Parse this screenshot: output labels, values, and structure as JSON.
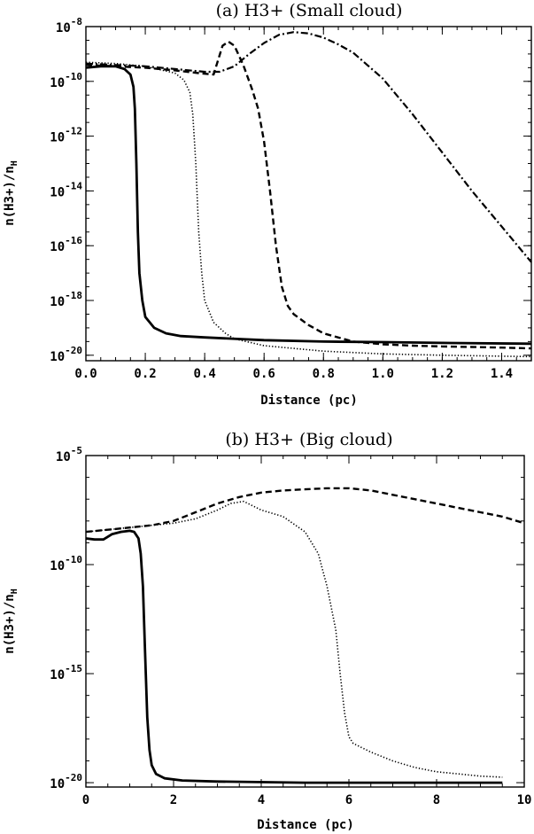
{
  "chart_data": [
    {
      "panel_id": "a",
      "type": "line",
      "title": "(a) H3+ (Small cloud)",
      "xlabel": "Distance (pc)",
      "ylabel": "n(H3+)/n",
      "ylabel_subscript": "H",
      "xlim": [
        0.0,
        1.5
      ],
      "ylim_log10": [
        -20.2,
        -8.0
      ],
      "x_tick_labels": [
        "0.0",
        "0.2",
        "0.4",
        "0.6",
        "0.8",
        "1.0",
        "1.2",
        "1.4"
      ],
      "y_tick_base": "10",
      "y_tick_exponents": [
        "-8",
        "-10",
        "-12",
        "-14",
        "-16",
        "-18",
        "-20"
      ],
      "grid": false,
      "series": [
        {
          "style": "solid",
          "x": [
            0.0,
            0.05,
            0.1,
            0.13,
            0.15,
            0.16,
            0.165,
            0.17,
            0.175,
            0.18,
            0.19,
            0.2,
            0.23,
            0.27,
            0.32,
            0.4,
            0.6,
            0.8,
            1.0,
            1.2,
            1.5
          ],
          "log10_y": [
            -9.5,
            -9.45,
            -9.45,
            -9.55,
            -9.75,
            -10.2,
            -11.0,
            -13.0,
            -15.5,
            -17.0,
            -18.0,
            -18.6,
            -19.0,
            -19.2,
            -19.3,
            -19.35,
            -19.45,
            -19.5,
            -19.52,
            -19.55,
            -19.58
          ]
        },
        {
          "style": "dotted",
          "x": [
            0.0,
            0.1,
            0.2,
            0.3,
            0.33,
            0.35,
            0.36,
            0.37,
            0.38,
            0.39,
            0.4,
            0.43,
            0.47,
            0.5,
            0.6,
            0.8,
            1.0,
            1.2,
            1.5
          ],
          "log10_y": [
            -9.3,
            -9.35,
            -9.45,
            -9.7,
            -9.95,
            -10.4,
            -11.2,
            -13.0,
            -15.5,
            -17.0,
            -18.0,
            -18.8,
            -19.2,
            -19.4,
            -19.65,
            -19.85,
            -19.95,
            -20.0,
            -20.05
          ]
        },
        {
          "style": "dashed",
          "x": [
            0.0,
            0.1,
            0.2,
            0.3,
            0.38,
            0.43,
            0.46,
            0.48,
            0.5,
            0.53,
            0.56,
            0.58,
            0.6,
            0.62,
            0.64,
            0.66,
            0.68,
            0.7,
            0.75,
            0.8,
            0.9,
            1.0,
            1.1,
            1.2,
            1.3,
            1.4,
            1.5
          ],
          "log10_y": [
            -9.4,
            -9.45,
            -9.5,
            -9.6,
            -9.7,
            -9.75,
            -8.7,
            -8.55,
            -8.7,
            -9.4,
            -10.3,
            -11.0,
            -12.2,
            -14.0,
            -16.0,
            -17.5,
            -18.2,
            -18.5,
            -18.9,
            -19.2,
            -19.5,
            -19.6,
            -19.65,
            -19.68,
            -19.7,
            -19.72,
            -19.75
          ]
        },
        {
          "style": "dashdot",
          "x": [
            0.0,
            0.1,
            0.2,
            0.3,
            0.4,
            0.45,
            0.5,
            0.55,
            0.6,
            0.65,
            0.7,
            0.75,
            0.8,
            0.85,
            0.9,
            1.0,
            1.1,
            1.2,
            1.3,
            1.4,
            1.5
          ],
          "log10_y": [
            -9.35,
            -9.4,
            -9.45,
            -9.55,
            -9.65,
            -9.65,
            -9.45,
            -9.0,
            -8.6,
            -8.3,
            -8.2,
            -8.25,
            -8.4,
            -8.65,
            -8.95,
            -9.9,
            -11.2,
            -12.6,
            -14.0,
            -15.3,
            -16.6
          ]
        }
      ]
    },
    {
      "panel_id": "b",
      "type": "line",
      "title": "(b) H3+ (Big cloud)",
      "xlabel": "Distance (pc)",
      "ylabel": "n(H3+)/n",
      "ylabel_subscript": "H",
      "xlim": [
        0,
        10
      ],
      "ylim_log10": [
        -20.2,
        -5.0
      ],
      "x_tick_labels": [
        "0",
        "2",
        "4",
        "6",
        "8",
        "10"
      ],
      "y_tick_base": "10",
      "y_tick_exponents": [
        "-5",
        "-10",
        "-15",
        "-20"
      ],
      "grid": false,
      "series": [
        {
          "style": "solid",
          "x": [
            0.0,
            0.2,
            0.4,
            0.6,
            0.8,
            1.0,
            1.1,
            1.2,
            1.25,
            1.3,
            1.35,
            1.4,
            1.45,
            1.5,
            1.6,
            1.8,
            2.2,
            3.0,
            5.0,
            7.0,
            9.5
          ],
          "log10_y": [
            -8.8,
            -8.85,
            -8.85,
            -8.6,
            -8.5,
            -8.45,
            -8.5,
            -8.8,
            -9.5,
            -11.0,
            -14.0,
            -17.0,
            -18.5,
            -19.2,
            -19.6,
            -19.8,
            -19.9,
            -19.95,
            -20.0,
            -20.0,
            -20.0
          ]
        },
        {
          "style": "dotted",
          "x": [
            0.0,
            0.5,
            1.0,
            1.5,
            2.0,
            2.5,
            3.0,
            3.3,
            3.6,
            3.8,
            4.0,
            4.5,
            5.0,
            5.3,
            5.5,
            5.7,
            5.8,
            5.9,
            6.0,
            6.1,
            6.5,
            7.0,
            7.5,
            8.0,
            8.5,
            9.0,
            9.5
          ],
          "log10_y": [
            -8.5,
            -8.4,
            -8.3,
            -8.2,
            -8.1,
            -7.9,
            -7.5,
            -7.2,
            -7.1,
            -7.3,
            -7.5,
            -7.8,
            -8.5,
            -9.5,
            -11.0,
            -13.0,
            -15.0,
            -16.8,
            -17.9,
            -18.2,
            -18.6,
            -19.0,
            -19.3,
            -19.5,
            -19.6,
            -19.7,
            -19.75
          ]
        },
        {
          "style": "dashed",
          "x": [
            0.0,
            0.5,
            1.0,
            1.5,
            2.0,
            2.5,
            3.0,
            3.5,
            4.0,
            4.5,
            5.0,
            5.5,
            6.0,
            6.5,
            7.0,
            7.5,
            8.0,
            8.5,
            9.0,
            9.5,
            10.0
          ],
          "log10_y": [
            -8.5,
            -8.4,
            -8.3,
            -8.2,
            -8.0,
            -7.6,
            -7.2,
            -6.9,
            -6.7,
            -6.6,
            -6.55,
            -6.5,
            -6.5,
            -6.6,
            -6.8,
            -7.0,
            -7.2,
            -7.4,
            -7.6,
            -7.8,
            -8.1
          ]
        }
      ]
    }
  ]
}
